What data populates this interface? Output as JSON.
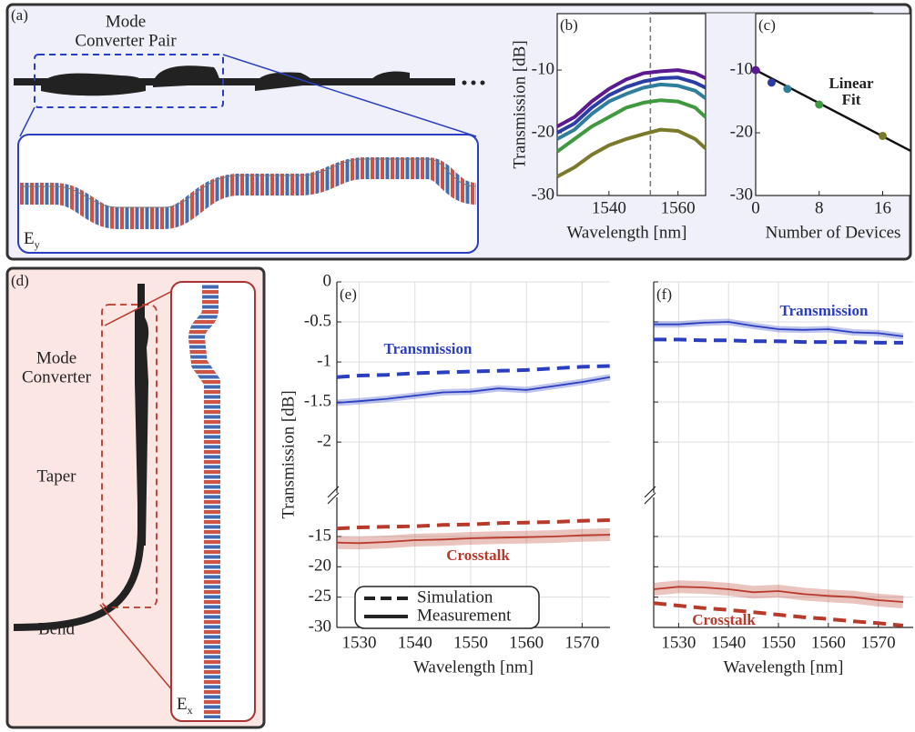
{
  "figure": {
    "panel_a": {
      "label": "(a)",
      "title": [
        "Mode",
        "Converter Pair"
      ],
      "field": {
        "main": "E",
        "sub": "y"
      }
    },
    "panel_d": {
      "label": "(d)",
      "mode_converter": [
        "Mode",
        "Converter"
      ],
      "taper": "Taper",
      "bend": "Bend",
      "field": {
        "main": "E",
        "sub": "x"
      }
    }
  },
  "chart_data": [
    {
      "type": "line",
      "panel": "(b)",
      "ylabel": "Transmission [dB]",
      "xlabel": "Wavelength [nm]",
      "xlim": [
        1525,
        1568
      ],
      "ylim": [
        -30,
        -1
      ],
      "xticks": [
        1540,
        1560
      ],
      "yticks": [
        -10,
        -20,
        -30
      ],
      "marker_x": 1552,
      "x": [
        1525,
        1530,
        1535,
        1540,
        1545,
        1550,
        1555,
        1560,
        1565,
        1568
      ],
      "series": [
        {
          "color": "#5b1a8f",
          "values": [
            -19,
            -17.5,
            -15,
            -13,
            -11.5,
            -10.5,
            -10.2,
            -10,
            -10.5,
            -11.3
          ]
        },
        {
          "color": "#2b3ea8",
          "values": [
            -20,
            -18.5,
            -16,
            -14,
            -12.7,
            -11.8,
            -11.3,
            -11.2,
            -12,
            -12.8
          ]
        },
        {
          "color": "#2f7f9c",
          "values": [
            -21,
            -19.5,
            -17,
            -15,
            -13.8,
            -12.8,
            -12.3,
            -12.5,
            -13.3,
            -14.5
          ]
        },
        {
          "color": "#3f9a3f",
          "values": [
            -23,
            -21,
            -19,
            -17.5,
            -16,
            -15.2,
            -14.8,
            -15,
            -16,
            -17.5
          ]
        },
        {
          "color": "#7a7a2a",
          "values": [
            -27,
            -25.5,
            -23.5,
            -22,
            -21,
            -20.2,
            -19.5,
            -19.7,
            -21,
            -22.5
          ]
        }
      ]
    },
    {
      "type": "scatter",
      "panel": "(c)",
      "xlabel": "Number of Devices",
      "annotation": [
        "Linear",
        "Fit"
      ],
      "xlim": [
        0,
        19.5
      ],
      "ylim": [
        -30,
        -1
      ],
      "xticks": [
        0,
        8,
        16
      ],
      "yticks": [
        -10,
        -20,
        -30
      ],
      "x": [
        0,
        2,
        4,
        8,
        16
      ],
      "values": [
        -10,
        -12,
        -13,
        -15.5,
        -20.5
      ],
      "colors": [
        "#5b1a8f",
        "#2b3ea8",
        "#2f7f9c",
        "#3f9a3f",
        "#7a7a2a"
      ],
      "fit": {
        "slope": -0.66,
        "intercept": -10
      }
    },
    {
      "type": "broken-line",
      "panel": "(e)",
      "ylabel": "Transmission [dB]",
      "xlabel": "Wavelength [nm]",
      "xlim": [
        1526,
        1575
      ],
      "ylim_upper": [
        -2.6,
        0
      ],
      "ylim_lower": [
        -30,
        -9
      ],
      "ytick_labels": true,
      "grid": true,
      "xticks": [
        1530,
        1540,
        1550,
        1560,
        1570
      ],
      "yticks": [
        0,
        -0.5,
        -1,
        -1.5,
        -2,
        -15,
        -20,
        -25,
        -30
      ],
      "x": [
        1526,
        1530,
        1535,
        1540,
        1545,
        1550,
        1555,
        1560,
        1565,
        1570,
        1575
      ],
      "series": [
        {
          "name": "Transmission",
          "color": "#2b3ec0",
          "simulation": [
            -1.19,
            -1.17,
            -1.16,
            -1.14,
            -1.13,
            -1.12,
            -1.11,
            -1.1,
            -1.08,
            -1.06,
            -1.05
          ],
          "measurement": [
            -1.51,
            -1.49,
            -1.46,
            -1.42,
            -1.38,
            -1.37,
            -1.33,
            -1.35,
            -1.3,
            -1.25,
            -1.19
          ]
        },
        {
          "name": "Crosstalk",
          "color": "#b83a2a",
          "simulation": [
            -13.7,
            -13.5,
            -13.4,
            -13.3,
            -13.1,
            -13,
            -12.8,
            -12.7,
            -12.6,
            -12.4,
            -12.3
          ],
          "measurement": [
            -16,
            -16.1,
            -15.9,
            -15.6,
            -15.5,
            -15.3,
            -15.2,
            -15.1,
            -15,
            -14.8,
            -14.7
          ]
        }
      ],
      "legend": [
        {
          "label": "Simulation",
          "dashed": true
        },
        {
          "label": "Measurement",
          "dashed": false
        }
      ]
    },
    {
      "type": "broken-line",
      "panel": "(f)",
      "xlabel": "Wavelength [nm]",
      "xlim": [
        1525,
        1577
      ],
      "ylim_upper": [
        -2.6,
        0
      ],
      "ylim_lower": [
        -30,
        -9
      ],
      "ytick_labels": false,
      "grid": true,
      "xticks": [
        1530,
        1540,
        1550,
        1560,
        1570
      ],
      "yticks": [
        0,
        -0.5,
        -1,
        -1.5,
        -2,
        -15,
        -20,
        -25,
        -30
      ],
      "x": [
        1525,
        1530,
        1535,
        1540,
        1545,
        1550,
        1555,
        1560,
        1565,
        1570,
        1575
      ],
      "series": [
        {
          "name": "Transmission",
          "color": "#2b3ec0",
          "simulation": [
            -0.72,
            -0.72,
            -0.73,
            -0.73,
            -0.74,
            -0.74,
            -0.75,
            -0.75,
            -0.75,
            -0.76,
            -0.76
          ],
          "measurement": [
            -0.53,
            -0.53,
            -0.51,
            -0.5,
            -0.55,
            -0.59,
            -0.6,
            -0.59,
            -0.63,
            -0.64,
            -0.68
          ]
        },
        {
          "name": "Crosstalk",
          "color": "#b83a2a",
          "simulation": [
            -26,
            -26.4,
            -26.8,
            -27.1,
            -27.5,
            -27.9,
            -28.3,
            -28.6,
            -29,
            -29.3,
            -29.7
          ],
          "measurement": [
            -23.7,
            -23.3,
            -23.4,
            -23.7,
            -24.2,
            -24,
            -24.5,
            -24.8,
            -25,
            -25.5,
            -25.8
          ]
        }
      ]
    }
  ]
}
